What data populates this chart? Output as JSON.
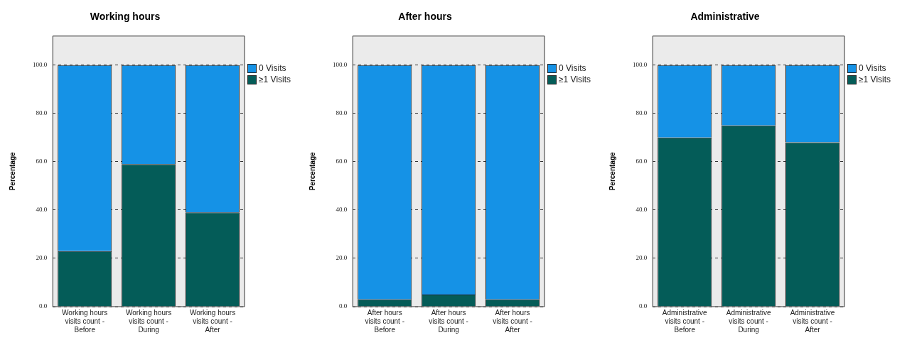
{
  "chart_data": [
    {
      "type": "bar",
      "title": "Working hours",
      "ylabel": "Percentage",
      "categories": [
        "Working hours visits count - Before",
        "Working hours visits count - During",
        "Working hours visits count - After"
      ],
      "stacked": true,
      "ylim": [
        0,
        112
      ],
      "yticks": [
        {
          "value": 0,
          "label": "0.0"
        },
        {
          "value": 20,
          "label": "20.0"
        },
        {
          "value": 40,
          "label": "40.0"
        },
        {
          "value": 60,
          "label": "60.0"
        },
        {
          "value": 80,
          "label": "80.0"
        },
        {
          "value": 100,
          "label": "100.0"
        }
      ],
      "grid": "y",
      "legend": "top right",
      "series": [
        {
          "name": "≥1 Visits",
          "color": "#045c58",
          "values": [
            23,
            59,
            39
          ]
        },
        {
          "name": "0 Visits",
          "color": "#1592e6",
          "values": [
            77,
            41,
            61
          ]
        }
      ]
    },
    {
      "type": "bar",
      "title": "After hours",
      "ylabel": "Percentage",
      "categories": [
        "After hours visits count - Before",
        "After hours visits count - During",
        "After hours visits count - After"
      ],
      "stacked": true,
      "ylim": [
        0,
        112
      ],
      "yticks": [
        {
          "value": 0,
          "label": "0.0"
        },
        {
          "value": 20,
          "label": "20.0"
        },
        {
          "value": 40,
          "label": "40.0"
        },
        {
          "value": 60,
          "label": "60.0"
        },
        {
          "value": 80,
          "label": "80.0"
        },
        {
          "value": 100,
          "label": "100.0"
        }
      ],
      "grid": "y",
      "legend": "top right",
      "series": [
        {
          "name": "≥1 Visits",
          "color": "#045c58",
          "values": [
            3,
            5,
            3
          ]
        },
        {
          "name": "0 Visits",
          "color": "#1592e6",
          "values": [
            97,
            95,
            97
          ]
        }
      ]
    },
    {
      "type": "bar",
      "title": "Administrative",
      "ylabel": "Percentage",
      "categories": [
        "Administrative visits count - Before",
        "Administrative visits count - During",
        "Administrative visits count - After"
      ],
      "stacked": true,
      "ylim": [
        0,
        112
      ],
      "yticks": [
        {
          "value": 0,
          "label": "0.0"
        },
        {
          "value": 20,
          "label": "20.0"
        },
        {
          "value": 40,
          "label": "40.0"
        },
        {
          "value": 60,
          "label": "60.0"
        },
        {
          "value": 80,
          "label": "80.0"
        },
        {
          "value": 100,
          "label": "100.0"
        }
      ],
      "grid": "y",
      "legend": "top right",
      "series": [
        {
          "name": "≥1 Visits",
          "color": "#045c58",
          "values": [
            70,
            75,
            68
          ]
        },
        {
          "name": "0 Visits",
          "color": "#1592e6",
          "values": [
            30,
            25,
            32
          ]
        }
      ]
    }
  ]
}
